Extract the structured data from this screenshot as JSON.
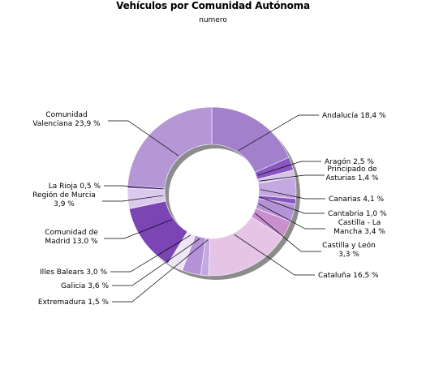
{
  "chart_data": {
    "type": "pie",
    "style": "donut",
    "title": "Vehículos por Comunidad Autónoma",
    "subtitle": "numero",
    "slices": [
      {
        "name": "Andalucía",
        "label": [
          "Andalucía 18,4 %"
        ],
        "value": 18.4,
        "color": "#a380cc"
      },
      {
        "name": "Aragón",
        "label": [
          "Aragón 2,5 %"
        ],
        "value": 2.5,
        "color": "#8a56c2"
      },
      {
        "name": "Principado de Asturias",
        "label": [
          "Principado de",
          "Asturias 1,4 %"
        ],
        "value": 1.4,
        "color": "#d6c4ea"
      },
      {
        "name": "Canarias",
        "label": [
          "Canarias 4,1 %"
        ],
        "value": 4.1,
        "color": "#c3a9e0"
      },
      {
        "name": "Cantabria",
        "label": [
          "Cantabria 1,0 %"
        ],
        "value": 1.0,
        "color": "#8a56c2"
      },
      {
        "name": "Castilla - La Mancha",
        "label": [
          "Castilla - La",
          "Mancha 3,4 %"
        ],
        "value": 3.4,
        "color": "#b392d6"
      },
      {
        "name": "Castilla y León",
        "label": [
          "Castilla y León",
          "3,3 %"
        ],
        "value": 3.3,
        "color": "#c98fcf"
      },
      {
        "name": "Cataluña",
        "label": [
          "Cataluña 16,5 %"
        ],
        "value": 16.5,
        "color": "#e6c4e6"
      },
      {
        "name": "Extremadura",
        "label": [
          "Extremadura 1,5 %"
        ],
        "value": 1.5,
        "color": "#c3a9e0"
      },
      {
        "name": "Galicia",
        "label": [
          "Galicia 3,6 %"
        ],
        "value": 3.6,
        "color": "#b592d8"
      },
      {
        "name": "Illes Balears",
        "label": [
          "Illes Balears 3,0 %"
        ],
        "value": 3.0,
        "color": "#eee6f6"
      },
      {
        "name": "Comunidad de Madrid",
        "label": [
          "Comunidad de",
          "Madrid 13,0 %"
        ],
        "value": 13.0,
        "color": "#7b45b4"
      },
      {
        "name": "Región de Murcia",
        "label": [
          "Región de Murcia",
          "3,9 %"
        ],
        "value": 3.9,
        "color": "#dacbed"
      },
      {
        "name": "La Rioja",
        "label": [
          "La Rioja 0,5 %"
        ],
        "value": 0.5,
        "color": "#8a56c2"
      },
      {
        "name": "Comunidad Valenciana",
        "label": [
          "Comunidad",
          "Valenciana 23,9 %"
        ],
        "value": 23.9,
        "color": "#b497d4"
      }
    ],
    "legend": "none"
  }
}
